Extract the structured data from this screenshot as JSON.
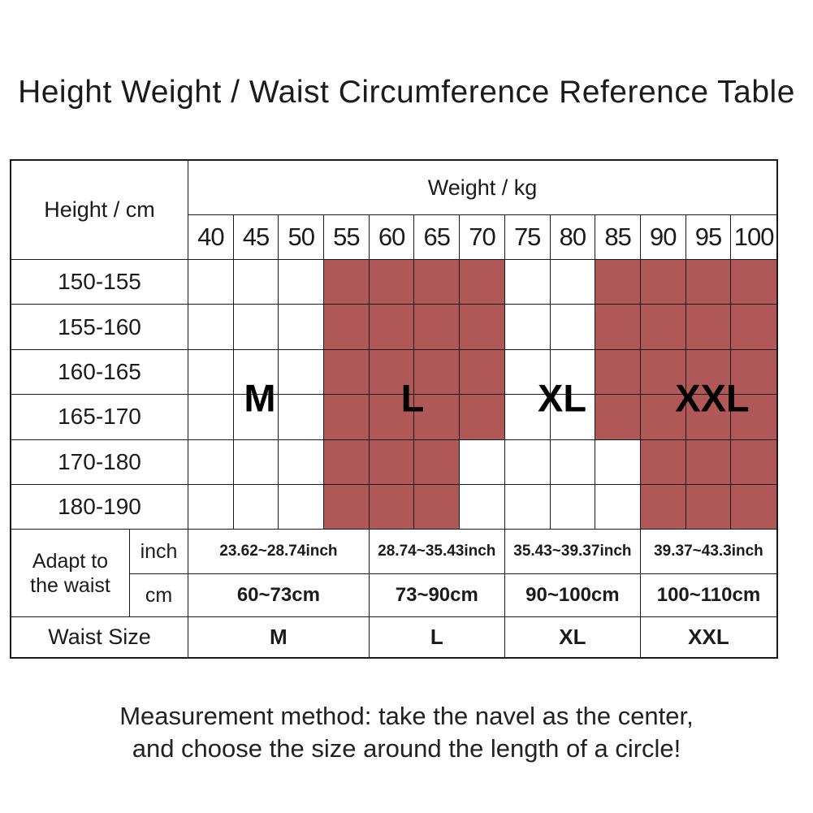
{
  "title": "Height Weight / Waist Circumference Reference Table",
  "chart_data": {
    "type": "table",
    "title": "Height Weight / Waist Circumference Reference Table",
    "weight_header": "Weight / kg",
    "height_header": "Height / cm",
    "weight_columns": [
      "40",
      "45",
      "50",
      "55",
      "60",
      "65",
      "70",
      "75",
      "80",
      "85",
      "90",
      "95",
      "100"
    ],
    "height_rows": [
      "150-155",
      "155-160",
      "160-165",
      "165-170",
      "170-180",
      "180-190"
    ],
    "highlight_matrix": [
      [
        0,
        0,
        0,
        1,
        1,
        1,
        1,
        0,
        0,
        1,
        1,
        1,
        1
      ],
      [
        0,
        0,
        0,
        1,
        1,
        1,
        1,
        0,
        0,
        1,
        1,
        1,
        1
      ],
      [
        0,
        0,
        0,
        1,
        1,
        1,
        1,
        0,
        0,
        1,
        1,
        1,
        1
      ],
      [
        0,
        0,
        0,
        1,
        1,
        1,
        1,
        0,
        0,
        1,
        1,
        1,
        1
      ],
      [
        0,
        0,
        0,
        1,
        1,
        1,
        0,
        0,
        0,
        0,
        1,
        1,
        1
      ],
      [
        0,
        0,
        0,
        1,
        1,
        1,
        0,
        0,
        0,
        0,
        1,
        1,
        1
      ]
    ],
    "highlight_color": "#b05858",
    "grid_line_color": "#1a1a1a",
    "size_zone_labels": [
      "M",
      "L",
      "XL",
      "XXL"
    ],
    "waist_section": {
      "row_label": "Adapt to the waist",
      "unit_inch": "inch",
      "unit_cm": "cm",
      "waist_size_header": "Waist Size",
      "groups": [
        {
          "size": "M",
          "inch": "23.62~28.74inch",
          "cm": "60~73cm",
          "weight_span": 4
        },
        {
          "size": "L",
          "inch": "28.74~35.43inch",
          "cm": "73~90cm",
          "weight_span": 3
        },
        {
          "size": "XL",
          "inch": "35.43~39.37inch",
          "cm": "90~100cm",
          "weight_span": 3
        },
        {
          "size": "XXL",
          "inch": "39.37~43.3inch",
          "cm": "100~110cm",
          "weight_span": 3
        }
      ]
    }
  },
  "note": {
    "line1": "Measurement method: take the navel as the center,",
    "line2": "and choose the size around the length of a circle!"
  }
}
